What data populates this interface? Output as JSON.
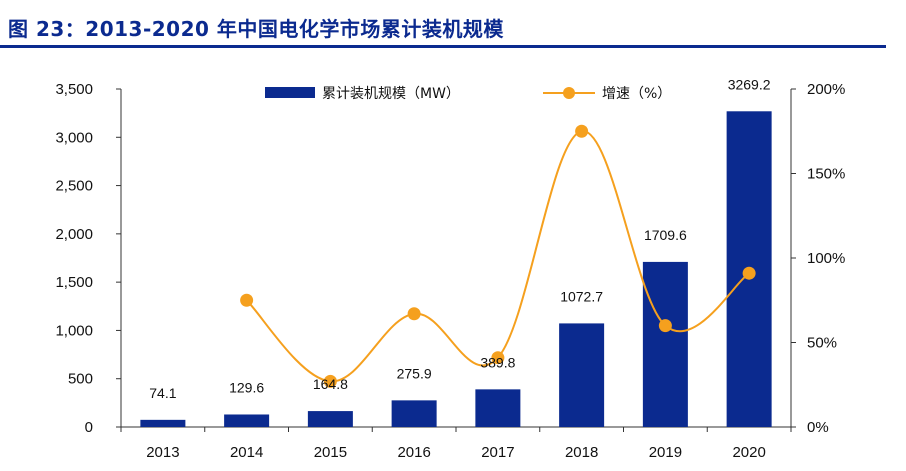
{
  "figure": {
    "title": "图 23：2013-2020 年中国电化学市场累计装机规模"
  },
  "chart_data": {
    "type": "bar",
    "title": "图 23：2013-2020 年中国电化学市场累计装机规模",
    "categories": [
      "2013",
      "2014",
      "2015",
      "2016",
      "2017",
      "2018",
      "2019",
      "2020"
    ],
    "series": [
      {
        "name": "累计装机规模（MW）",
        "type": "bar",
        "axis": "left",
        "color": "#0b2a8f",
        "values": [
          74.1,
          129.6,
          164.8,
          275.9,
          389.8,
          1072.7,
          1709.6,
          3269.2
        ],
        "labels": [
          "74.1",
          "129.6",
          "164.8",
          "275.9",
          "389.8",
          "1072.7",
          "1709.6",
          "3269.2"
        ]
      },
      {
        "name": "增速（%）",
        "type": "line",
        "axis": "right",
        "color": "#f5a01e",
        "values": [
          null,
          75,
          27,
          67,
          41,
          175,
          60,
          91
        ]
      }
    ],
    "y_left": {
      "range": [
        0,
        3500
      ],
      "ticks": [
        0,
        500,
        1000,
        1500,
        2000,
        2500,
        3000,
        3500
      ],
      "tick_labels": [
        "0",
        "500",
        "1,000",
        "1,500",
        "2,000",
        "2,500",
        "3,000",
        "3,500"
      ]
    },
    "y_right": {
      "range": [
        0,
        200
      ],
      "ticks": [
        0,
        50,
        100,
        150,
        200
      ],
      "tick_labels": [
        "0%",
        "50%",
        "100%",
        "150%",
        "200%"
      ]
    },
    "legend": {
      "position": "top",
      "items": [
        "累计装机规模（MW）",
        "增速（%）"
      ]
    },
    "grid": false
  }
}
